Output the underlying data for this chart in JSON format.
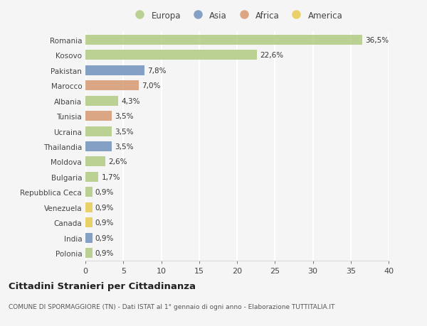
{
  "countries": [
    "Romania",
    "Kosovo",
    "Pakistan",
    "Marocco",
    "Albania",
    "Tunisia",
    "Ucraina",
    "Thailandia",
    "Moldova",
    "Bulgaria",
    "Repubblica Ceca",
    "Venezuela",
    "Canada",
    "India",
    "Polonia"
  ],
  "values": [
    36.5,
    22.6,
    7.8,
    7.0,
    4.3,
    3.5,
    3.5,
    3.5,
    2.6,
    1.7,
    0.9,
    0.9,
    0.9,
    0.9,
    0.9
  ],
  "labels": [
    "36,5%",
    "22,6%",
    "7,8%",
    "7,0%",
    "4,3%",
    "3,5%",
    "3,5%",
    "3,5%",
    "2,6%",
    "1,7%",
    "0,9%",
    "0,9%",
    "0,9%",
    "0,9%",
    "0,9%"
  ],
  "continents": [
    "Europa",
    "Europa",
    "Asia",
    "Africa",
    "Europa",
    "Africa",
    "Europa",
    "Asia",
    "Europa",
    "Europa",
    "Europa",
    "America",
    "America",
    "Asia",
    "Europa"
  ],
  "colors": {
    "Europa": "#adc97e",
    "Asia": "#6b8dba",
    "Africa": "#d4956b",
    "America": "#e8c84a"
  },
  "background_color": "#f5f5f5",
  "grid_color": "#ffffff",
  "title": "Cittadini Stranieri per Cittadinanza",
  "subtitle": "COMUNE DI SPORMAGGIORE (TN) - Dati ISTAT al 1° gennaio di ogni anno - Elaborazione TUTTITALIA.IT",
  "xlim": [
    0,
    40
  ],
  "xticks": [
    0,
    5,
    10,
    15,
    20,
    25,
    30,
    35,
    40
  ],
  "legend_order": [
    "Europa",
    "Asia",
    "Africa",
    "America"
  ]
}
